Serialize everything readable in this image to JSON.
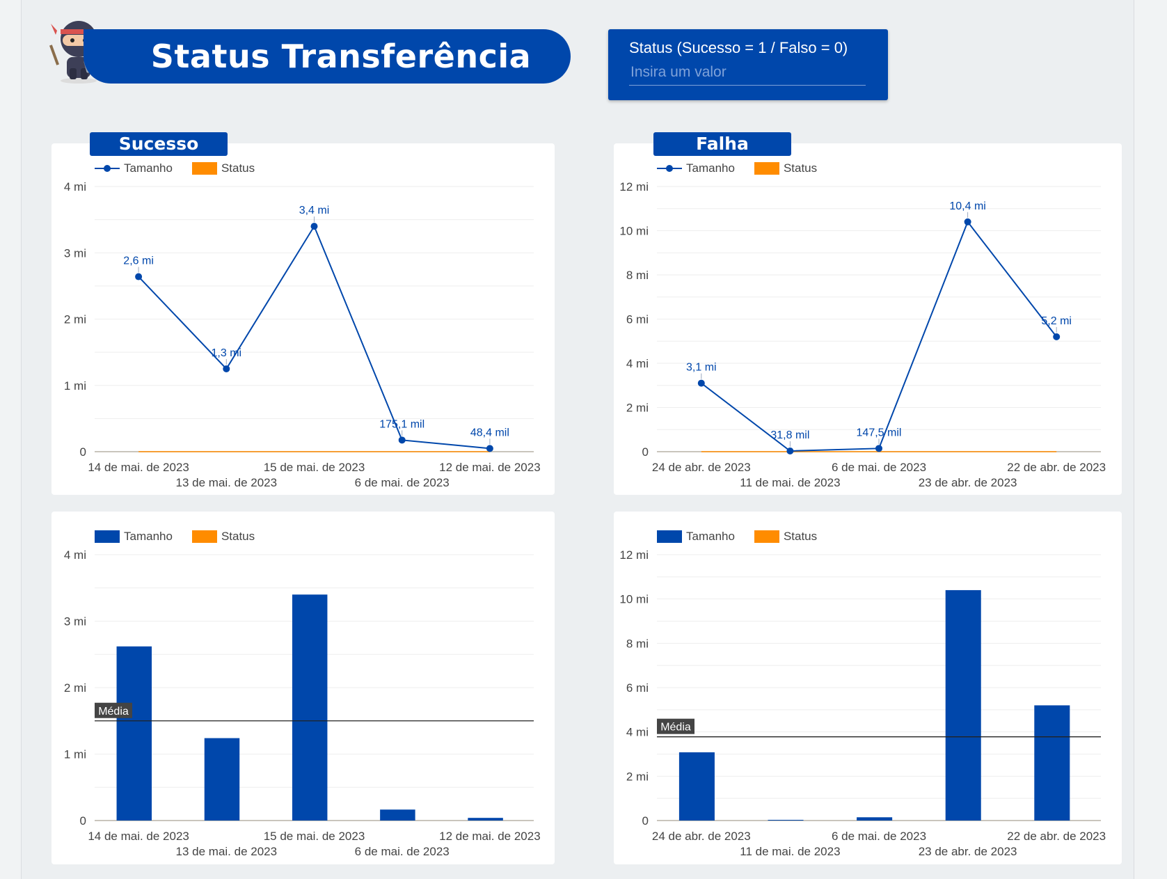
{
  "header": {
    "title": "Status Transferência",
    "filter_label": "Status (Sucesso = 1 / Falso = 0)",
    "filter_placeholder": "Insira um valor"
  },
  "colors": {
    "primary": "#0047ab",
    "status": "#ff8c00",
    "gridline": "#eeeeee",
    "mean_label_bg": "#444444"
  },
  "chart_data": [
    {
      "id": "sucesso-line",
      "type": "line",
      "chip_title": "Sucesso",
      "categories": [
        "14 de mai. de 2023",
        "13 de mai. de 2023",
        "15 de mai. de 2023",
        "6 de mai. de 2023",
        "12 de mai. de 2023"
      ],
      "series": [
        {
          "name": "Tamanho",
          "values": [
            2640000,
            1250000,
            3400000,
            175100,
            48400
          ],
          "labels": [
            "2,6 mi",
            "1,3 mi",
            "3,4 mi",
            "175,1 mil",
            "48,4 mil"
          ]
        },
        {
          "name": "Status",
          "values": [
            1,
            1,
            1,
            1,
            1
          ]
        }
      ],
      "yticks": [
        "0",
        "1 mi",
        "2 mi",
        "3 mi",
        "4 mi"
      ],
      "ylim": [
        0,
        4000000
      ],
      "legend": "top-left"
    },
    {
      "id": "falha-line",
      "type": "line",
      "chip_title": "Falha",
      "categories": [
        "24 de abr. de 2023",
        "11 de mai. de 2023",
        "6 de mai. de 2023",
        "23 de abr. de 2023",
        "22 de abr. de 2023"
      ],
      "series": [
        {
          "name": "Tamanho",
          "values": [
            3100000,
            31800,
            147500,
            10400000,
            5200000
          ],
          "labels": [
            "3,1 mi",
            "31,8 mil",
            "147,5 mil",
            "10,4 mi",
            "5,2 mi"
          ]
        },
        {
          "name": "Status",
          "values": [
            0,
            0,
            0,
            0,
            0
          ]
        }
      ],
      "yticks": [
        "0",
        "2 mi",
        "4 mi",
        "6 mi",
        "8 mi",
        "10 mi",
        "12 mi"
      ],
      "ylim": [
        0,
        12000000
      ],
      "legend": "top-left"
    },
    {
      "id": "sucesso-bar",
      "type": "bar",
      "categories": [
        "14 de mai. de 2023",
        "13 de mai. de 2023",
        "15 de mai. de 2023",
        "6 de mai. de 2023",
        "12 de mai. de 2023"
      ],
      "series": [
        {
          "name": "Tamanho",
          "values": [
            2620000,
            1240000,
            3400000,
            165000,
            40000
          ]
        },
        {
          "name": "Status",
          "values": [
            1,
            1,
            1,
            1,
            1
          ]
        }
      ],
      "mean_line": {
        "label": "Média",
        "value": 1500000
      },
      "yticks": [
        "0",
        "1 mi",
        "2 mi",
        "3 mi",
        "4 mi"
      ],
      "ylim": [
        0,
        4000000
      ],
      "legend": "top-left"
    },
    {
      "id": "falha-bar",
      "type": "bar",
      "categories": [
        "24 de abr. de 2023",
        "11 de mai. de 2023",
        "6 de mai. de 2023",
        "23 de abr. de 2023",
        "22 de abr. de 2023"
      ],
      "series": [
        {
          "name": "Tamanho",
          "values": [
            3080000,
            31800,
            147500,
            10400000,
            5200000
          ]
        },
        {
          "name": "Status",
          "values": [
            0,
            0,
            0,
            0,
            0
          ]
        }
      ],
      "mean_line": {
        "label": "Média",
        "value": 3780000
      },
      "yticks": [
        "0",
        "2 mi",
        "4 mi",
        "6 mi",
        "8 mi",
        "10 mi",
        "12 mi"
      ],
      "ylim": [
        0,
        12000000
      ],
      "legend": "top-left"
    }
  ]
}
